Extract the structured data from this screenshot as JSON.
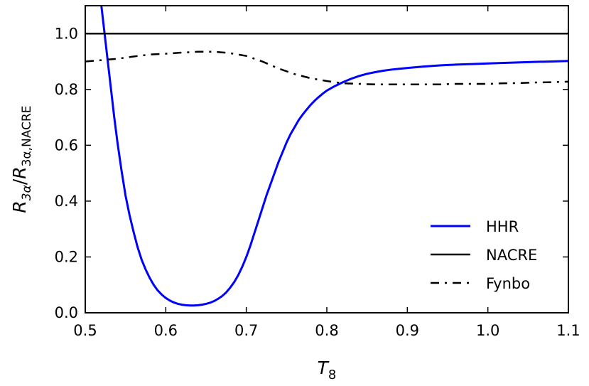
{
  "chart_data": {
    "type": "line",
    "xlabel": {
      "main": "T",
      "sub": "8"
    },
    "ylabel": {
      "main": "R",
      "sub1": "3α",
      "sep": "/",
      "sub2": "3α,NACRE"
    },
    "xlim": [
      0.5,
      1.1
    ],
    "ylim": [
      0.0,
      1.1
    ],
    "xticks": [
      "0.5",
      "0.6",
      "0.7",
      "0.8",
      "0.9",
      "1.0",
      "1.1"
    ],
    "yticks": [
      "0.0",
      "0.2",
      "0.4",
      "0.6",
      "0.8",
      "1.0"
    ],
    "grid": false,
    "legend_position": "lower-right",
    "series": [
      {
        "name": "HHR",
        "color": "#0000ff",
        "style": "solid",
        "x": [
          0.52,
          0.524,
          0.528,
          0.532,
          0.536,
          0.54,
          0.545,
          0.55,
          0.555,
          0.56,
          0.565,
          0.57,
          0.575,
          0.58,
          0.585,
          0.59,
          0.595,
          0.6,
          0.605,
          0.61,
          0.615,
          0.62,
          0.625,
          0.63,
          0.635,
          0.64,
          0.645,
          0.65,
          0.655,
          0.66,
          0.665,
          0.67,
          0.675,
          0.68,
          0.685,
          0.69,
          0.695,
          0.7,
          0.705,
          0.71,
          0.715,
          0.72,
          0.725,
          0.73,
          0.735,
          0.74,
          0.745,
          0.75,
          0.755,
          0.76,
          0.765,
          0.77,
          0.775,
          0.78,
          0.785,
          0.79,
          0.795,
          0.8,
          0.81,
          0.82,
          0.83,
          0.84,
          0.85,
          0.86,
          0.87,
          0.88,
          0.89,
          0.9,
          0.92,
          0.94,
          0.96,
          0.98,
          1.0,
          1.02,
          1.04,
          1.06,
          1.08,
          1.1
        ],
        "y": [
          1.1,
          1.0,
          0.9,
          0.8,
          0.7,
          0.61,
          0.51,
          0.42,
          0.35,
          0.29,
          0.235,
          0.19,
          0.155,
          0.125,
          0.1,
          0.08,
          0.065,
          0.053,
          0.044,
          0.037,
          0.032,
          0.029,
          0.027,
          0.026,
          0.026,
          0.027,
          0.029,
          0.032,
          0.036,
          0.042,
          0.05,
          0.06,
          0.073,
          0.09,
          0.11,
          0.135,
          0.165,
          0.2,
          0.24,
          0.285,
          0.33,
          0.375,
          0.42,
          0.46,
          0.5,
          0.54,
          0.575,
          0.61,
          0.64,
          0.665,
          0.69,
          0.71,
          0.728,
          0.745,
          0.76,
          0.773,
          0.785,
          0.796,
          0.812,
          0.826,
          0.838,
          0.848,
          0.856,
          0.862,
          0.867,
          0.871,
          0.874,
          0.877,
          0.882,
          0.886,
          0.889,
          0.891,
          0.893,
          0.895,
          0.897,
          0.899,
          0.9,
          0.902
        ]
      },
      {
        "name": "NACRE",
        "color": "#000000",
        "style": "solid",
        "x": [
          0.5,
          1.1
        ],
        "y": [
          1.0,
          1.0
        ]
      },
      {
        "name": "Fynbo",
        "color": "#000000",
        "style": "dashdot",
        "x": [
          0.5,
          0.52,
          0.54,
          0.56,
          0.58,
          0.6,
          0.62,
          0.64,
          0.66,
          0.68,
          0.7,
          0.72,
          0.74,
          0.76,
          0.78,
          0.8,
          0.82,
          0.84,
          0.86,
          0.88,
          0.9,
          0.92,
          0.94,
          0.96,
          0.98,
          1.0,
          1.02,
          1.04,
          1.06,
          1.08,
          1.1
        ],
        "y": [
          0.9,
          0.905,
          0.91,
          0.918,
          0.925,
          0.928,
          0.932,
          0.935,
          0.935,
          0.93,
          0.92,
          0.9,
          0.875,
          0.855,
          0.84,
          0.83,
          0.822,
          0.82,
          0.818,
          0.818,
          0.818,
          0.818,
          0.818,
          0.82,
          0.82,
          0.82,
          0.822,
          0.823,
          0.825,
          0.826,
          0.828
        ]
      }
    ]
  }
}
